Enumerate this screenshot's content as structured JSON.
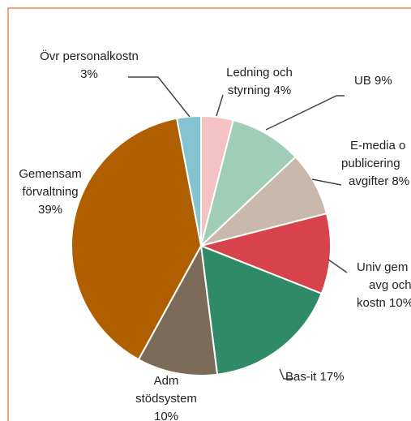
{
  "chart_data": {
    "type": "pie",
    "categories": [
      [
        "Ledning och",
        "styrning 4%"
      ],
      [
        "UB 9%"
      ],
      [
        "E-media o",
        "publicering",
        "avgifter 8%"
      ],
      [
        "Univ gem",
        "avg och",
        "kostn 10%"
      ],
      [
        "Bas-it 17%"
      ],
      [
        "Adm",
        "stödsystem",
        "10%"
      ],
      [
        "Gemensam",
        "förvaltning",
        "39%"
      ],
      [
        "Övr personalkostn",
        "3%"
      ]
    ],
    "values": [
      4,
      9,
      8,
      10,
      17,
      10,
      39,
      3
    ],
    "colors": [
      "#f4c1c4",
      "#9fcdb7",
      "#c9b9ad",
      "#d8434b",
      "#2f8a67",
      "#7d6b5a",
      "#b05f00",
      "#86c3d1"
    ]
  }
}
